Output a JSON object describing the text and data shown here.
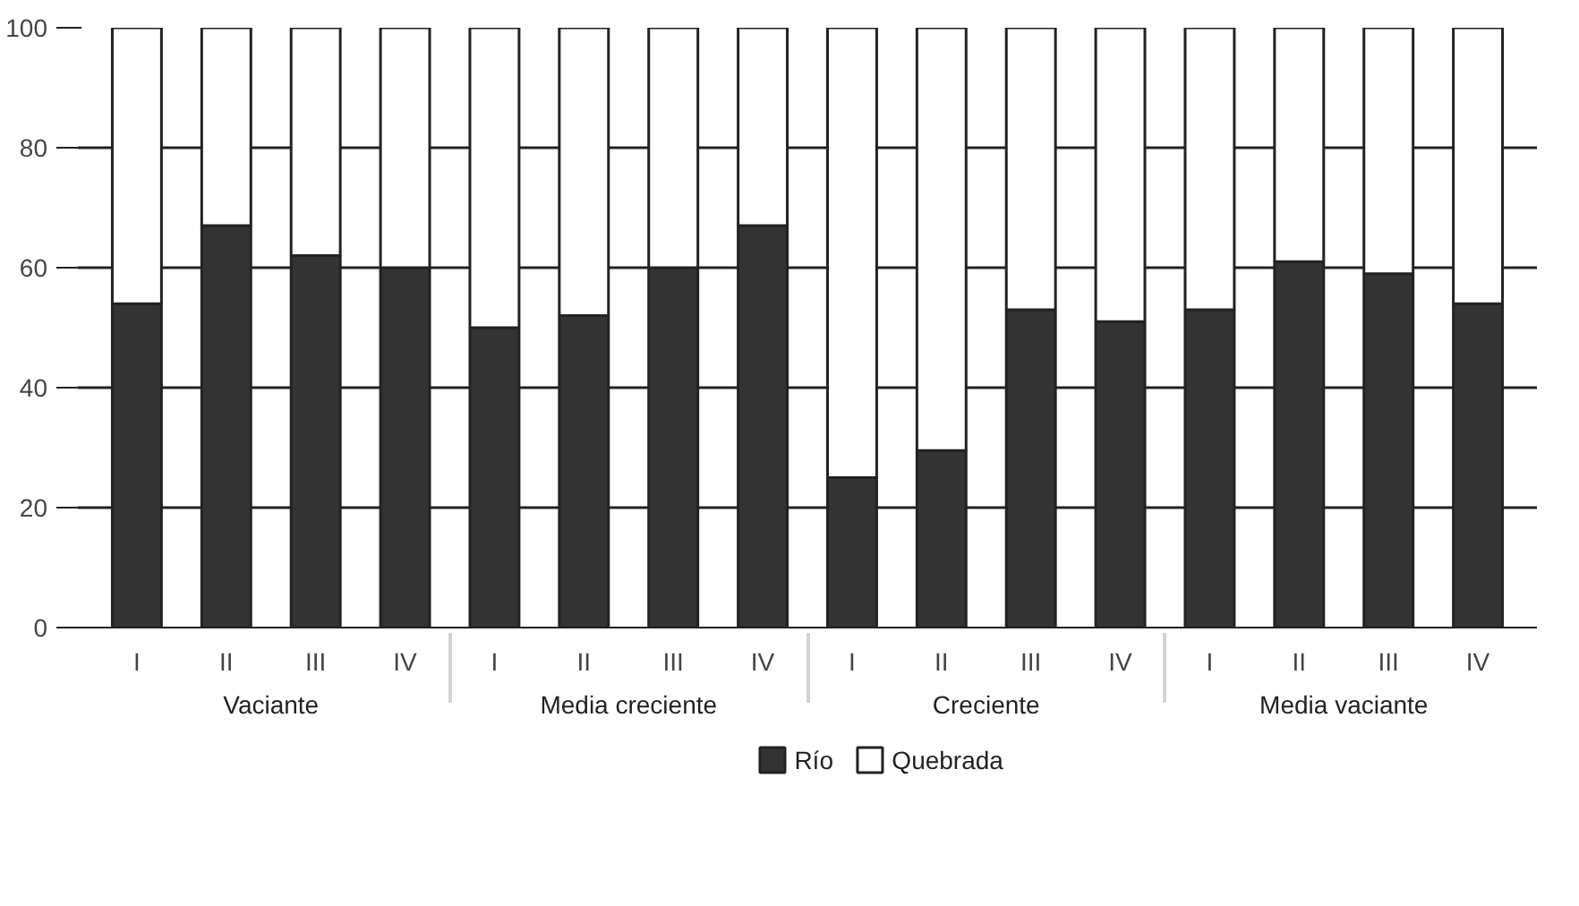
{
  "chart_data": {
    "type": "bar",
    "stacked": true,
    "categories": [
      "I",
      "II",
      "III",
      "IV",
      "I",
      "II",
      "III",
      "IV",
      "I",
      "II",
      "III",
      "IV",
      "I",
      "II",
      "III",
      "IV"
    ],
    "annotations": [
      "Vaciante",
      "Media creciente",
      "Creciente",
      "Media vaciante"
    ],
    "series": [
      {
        "name": "Río",
        "color": "#333333",
        "values": [
          54,
          67,
          62,
          60,
          50,
          52,
          60,
          67,
          25,
          29.5,
          53,
          51,
          53,
          61,
          59,
          54
        ]
      },
      {
        "name": "Quebrada",
        "color": "#ffffff",
        "values": [
          46,
          33,
          38,
          40,
          50,
          48,
          40,
          33,
          75,
          70.5,
          47,
          49,
          47,
          39,
          41,
          46
        ]
      }
    ],
    "ylim": [
      0,
      100
    ],
    "yticks": [
      0,
      20,
      40,
      60,
      80,
      100
    ],
    "grid": "y",
    "legend": "bottom"
  }
}
